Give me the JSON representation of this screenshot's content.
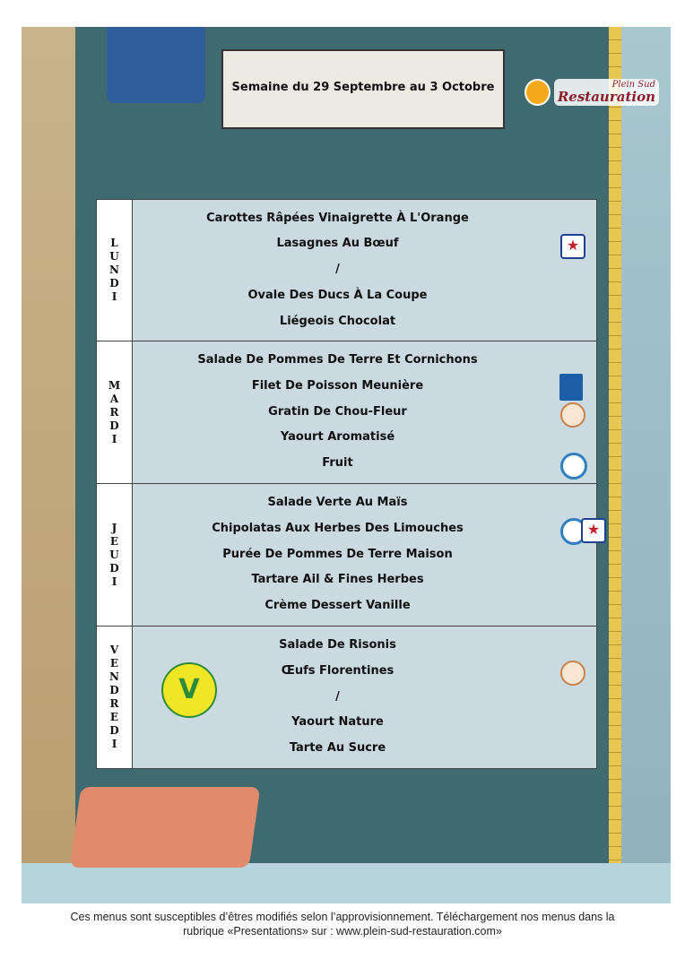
{
  "header": {
    "title": "Semaine du 29 Septembre au 3 Octobre"
  },
  "logo": {
    "line1": "Plein Sud",
    "line2": "Restauration"
  },
  "days": [
    {
      "label": "LUNDI",
      "dishes": [
        "Carottes Râpées Vinaigrette À L'Orange",
        "Lasagnes Au Bœuf",
        "/",
        "Ovale Des Ducs À La Coupe",
        "Liégeois Chocolat"
      ],
      "badges": [
        "star-label-icon"
      ]
    },
    {
      "label": "MARDI",
      "dishes": [
        "Salade De Pommes De Terre Et Cornichons",
        "Filet De Poisson Meunière",
        "Gratin De Chou-Fleur",
        "Yaourt Aromatisé",
        "Fruit"
      ],
      "badges": [
        "msc-fish-label-icon",
        "regional-label-icon",
        "bio-label-icon"
      ]
    },
    {
      "label": "JEUDI",
      "dishes": [
        "Salade Verte Au Maïs",
        "Chipolatas Aux Herbes Des Limouches",
        "Purée De Pommes De Terre Maison",
        "Tartare Ail & Fines Herbes",
        "Crème Dessert Vanille"
      ],
      "badges": [
        "bio-label-icon",
        "star-label-icon"
      ]
    },
    {
      "label": "VENDREDI",
      "dishes": [
        "Salade De Risonis",
        "Œufs Florentines",
        "/",
        "Yaourt Nature",
        "Tarte Au Sucre"
      ],
      "badges": [
        "regional-label-icon",
        "vegetarian-v-label-icon"
      ]
    }
  ],
  "footer": {
    "line1": "Ces menus sont susceptibles d’êtres modifiés selon l’approvisionnement. Téléchargement nos menus dans la",
    "line2": "rubrique «Presentations» sur : www.plein-sud-restauration.com»"
  }
}
